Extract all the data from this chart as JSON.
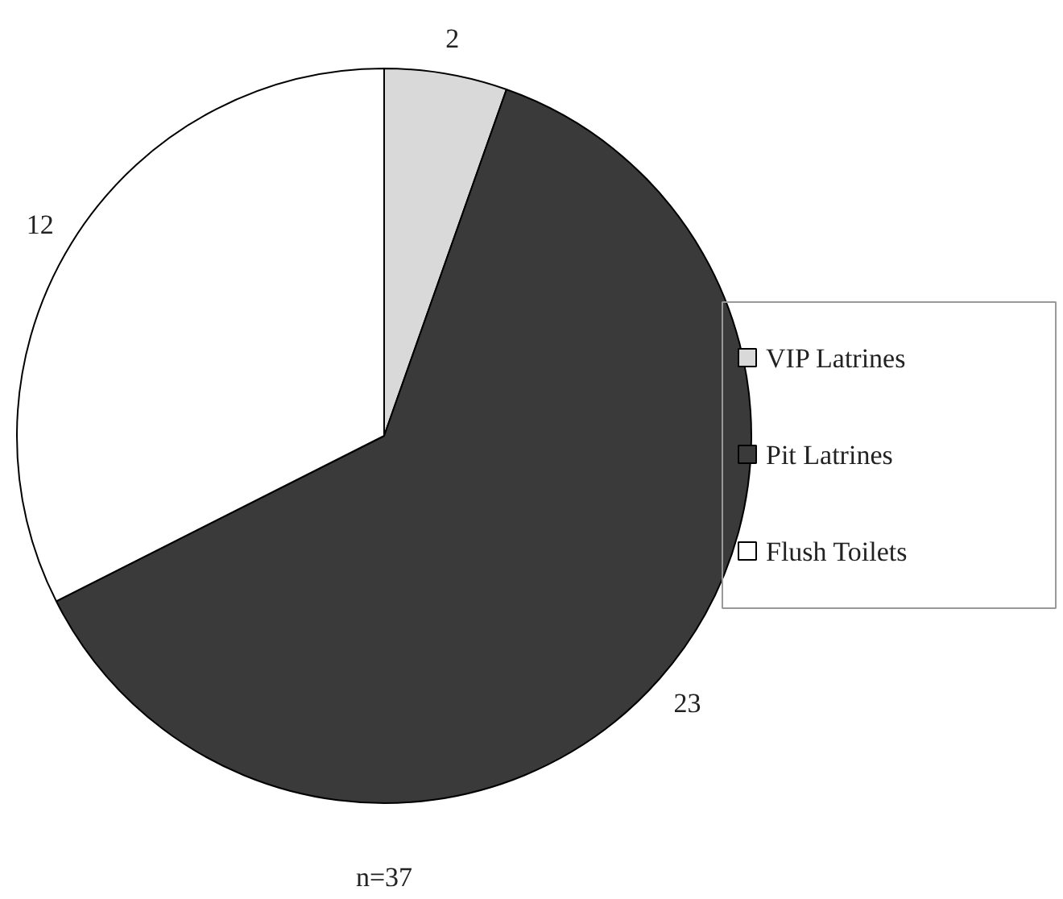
{
  "chart_data": {
    "type": "pie",
    "categories": [
      "VIP Latrines",
      "Pit Latrines",
      "Flush Toilets"
    ],
    "values": [
      2,
      23,
      12
    ],
    "colors": [
      "#d9d9d9",
      "#3a3a3a",
      "#ffffff"
    ],
    "data_labels": true,
    "legend": "right",
    "annotations": [
      "n=37"
    ]
  }
}
